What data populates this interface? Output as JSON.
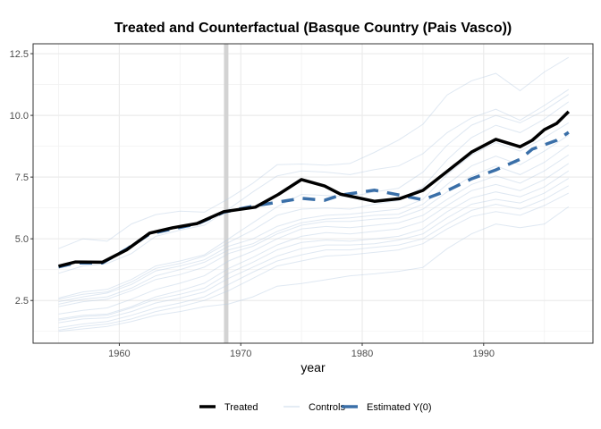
{
  "chart_data": {
    "type": "line",
    "title": "Treated and Counterfactual (Basque Country (Pais Vasco))",
    "xlabel": "year",
    "ylabel": "",
    "xlim": [
      1952.9,
      1999.0
    ],
    "ylim": [
      0.77,
      12.9
    ],
    "x_ticks": [
      1960,
      1970,
      1980,
      1990
    ],
    "x_tick_labels": [
      "1960",
      "1970",
      "1980",
      "1990"
    ],
    "x_minor_gridlines": [
      1955,
      1965,
      1975,
      1985,
      1995
    ],
    "y_ticks": [
      2.5,
      5.0,
      7.5,
      10.0,
      12.5
    ],
    "y_tick_labels": [
      "2.5",
      "5.0",
      "7.5",
      "10.0",
      "12.5"
    ],
    "y_minor_gridlines": [
      1.25,
      3.75,
      6.25,
      8.75,
      11.25
    ],
    "grid": true,
    "treatment_year": 1968.8,
    "legend": {
      "position": "bottom",
      "entries": [
        {
          "label": "Treated",
          "color": "#000000",
          "style": "solid"
        },
        {
          "label": "Controls",
          "color": "#dce6f1",
          "style": "solid"
        },
        {
          "label": "Estimated Y(0)",
          "color": "#3a6fa8",
          "style": "dashed"
        }
      ]
    },
    "colors": {
      "treated": "#000000",
      "controls": "#b9cde3",
      "estimated": "#3a6fa8",
      "treatment_band": "#d3d3d3",
      "grid": "#ebebeb",
      "panel_border": "#333333"
    },
    "series": [
      {
        "name": "Treated",
        "x": [
          1955,
          1956.4,
          1958.6,
          1960.6,
          1962.5,
          1964.4,
          1966.4,
          1968.6,
          1971.2,
          1973.1,
          1975,
          1976.9,
          1978.2,
          1981,
          1983.1,
          1985,
          1987,
          1989,
          1991,
          1993,
          1994,
          1995,
          1996,
          1997
        ],
        "values": [
          3.89,
          4.06,
          4.05,
          4.55,
          5.23,
          5.45,
          5.62,
          6.1,
          6.28,
          6.8,
          7.4,
          7.14,
          6.81,
          6.52,
          6.63,
          6.96,
          7.73,
          8.51,
          9.03,
          8.73,
          8.99,
          9.42,
          9.67,
          10.15
        ]
      },
      {
        "name": "Estimated Y(0)",
        "x": [
          1955,
          1956.4,
          1958.6,
          1960.6,
          1962.5,
          1964.4,
          1966.4,
          1968.6,
          1971.2,
          1975,
          1976.9,
          1978.2,
          1981,
          1983.1,
          1985,
          1987,
          1989,
          1991,
          1993,
          1994,
          1995,
          1996,
          1997
        ],
        "values": [
          3.86,
          4.02,
          4.02,
          4.58,
          5.2,
          5.4,
          5.6,
          6.08,
          6.34,
          6.64,
          6.56,
          6.77,
          6.97,
          6.77,
          6.58,
          6.95,
          7.43,
          7.79,
          8.22,
          8.63,
          8.81,
          8.99,
          9.31
        ]
      },
      {
        "name": "Controls",
        "x": [
          1955,
          1957,
          1959,
          1961,
          1963,
          1965,
          1967,
          1969,
          1971,
          1973,
          1975,
          1977,
          1979,
          1981,
          1983,
          1985,
          1987,
          1989,
          1991,
          1993,
          1995,
          1997
        ],
        "lines": [
          [
            4.6,
            5.0,
            4.9,
            5.6,
            5.98,
            6.12,
            6.08,
            6.63,
            7.25,
            8.0,
            8.03,
            7.98,
            8.05,
            8.5,
            9.0,
            9.64,
            10.83,
            11.4,
            11.7,
            11.0,
            11.76,
            12.35
          ],
          [
            3.6,
            3.9,
            4.0,
            4.4,
            5.1,
            5.35,
            5.55,
            6.2,
            6.9,
            7.55,
            7.75,
            7.7,
            7.6,
            7.8,
            7.95,
            8.45,
            9.3,
            9.9,
            10.25,
            9.8,
            10.4,
            11.05
          ],
          [
            2.6,
            2.85,
            2.95,
            3.35,
            3.9,
            4.1,
            4.35,
            5.0,
            5.65,
            6.3,
            6.8,
            6.75,
            6.7,
            6.9,
            7.05,
            7.7,
            8.8,
            9.6,
            10.0,
            9.7,
            10.2,
            10.85
          ],
          [
            2.55,
            2.75,
            2.85,
            3.25,
            3.8,
            4.0,
            4.3,
            4.85,
            5.35,
            5.95,
            6.2,
            6.25,
            6.2,
            6.4,
            6.55,
            7.1,
            8.2,
            9.1,
            9.6,
            9.3,
            9.85,
            10.55
          ],
          [
            2.45,
            2.65,
            2.8,
            3.15,
            3.7,
            3.9,
            4.15,
            4.7,
            5.0,
            5.5,
            5.8,
            5.95,
            6.0,
            6.1,
            6.2,
            6.6,
            7.6,
            8.4,
            8.9,
            8.55,
            9.1,
            9.7
          ],
          [
            2.35,
            2.55,
            2.65,
            3.0,
            3.5,
            3.75,
            4.05,
            4.55,
            4.8,
            5.3,
            5.65,
            5.8,
            5.85,
            5.95,
            6.0,
            6.4,
            7.2,
            7.95,
            8.35,
            8.0,
            8.55,
            9.2
          ],
          [
            2.25,
            2.45,
            2.55,
            2.9,
            3.35,
            3.55,
            3.85,
            4.4,
            4.7,
            5.2,
            5.55,
            5.7,
            5.7,
            5.8,
            5.85,
            6.2,
            6.9,
            7.55,
            7.95,
            7.6,
            8.1,
            8.8
          ],
          [
            1.95,
            2.1,
            2.2,
            2.55,
            2.95,
            3.2,
            3.5,
            4.1,
            4.5,
            5.0,
            5.4,
            5.5,
            5.45,
            5.55,
            5.65,
            5.95,
            6.6,
            7.2,
            7.55,
            7.25,
            7.75,
            8.4
          ],
          [
            1.75,
            1.9,
            1.95,
            2.25,
            2.65,
            2.9,
            3.2,
            3.8,
            4.25,
            4.75,
            5.1,
            5.25,
            5.2,
            5.3,
            5.4,
            5.7,
            6.35,
            6.95,
            7.2,
            6.95,
            7.4,
            8.05
          ],
          [
            1.7,
            1.85,
            1.9,
            2.2,
            2.55,
            2.75,
            3.0,
            3.6,
            4.05,
            4.55,
            4.85,
            4.95,
            4.9,
            5.0,
            5.1,
            5.4,
            6.1,
            6.65,
            6.9,
            6.7,
            7.1,
            7.75
          ],
          [
            1.6,
            1.75,
            1.8,
            2.05,
            2.4,
            2.6,
            2.85,
            3.4,
            3.85,
            4.3,
            4.6,
            4.75,
            4.75,
            4.8,
            4.95,
            5.2,
            5.85,
            6.4,
            6.6,
            6.45,
            6.85,
            7.45
          ],
          [
            1.4,
            1.55,
            1.65,
            1.9,
            2.2,
            2.4,
            2.65,
            3.15,
            3.65,
            4.1,
            4.35,
            4.55,
            4.55,
            4.65,
            4.75,
            5.0,
            5.6,
            6.15,
            6.4,
            6.2,
            6.6,
            7.15
          ],
          [
            1.3,
            1.45,
            1.55,
            1.75,
            2.05,
            2.25,
            2.5,
            2.9,
            3.4,
            3.9,
            4.1,
            4.3,
            4.35,
            4.45,
            4.55,
            4.8,
            5.4,
            5.9,
            6.1,
            5.95,
            6.35,
            6.85
          ],
          [
            1.25,
            1.35,
            1.45,
            1.65,
            1.9,
            2.05,
            2.25,
            2.36,
            2.65,
            3.08,
            3.19,
            3.34,
            3.5,
            3.58,
            3.68,
            3.84,
            4.6,
            5.2,
            5.6,
            5.45,
            5.6,
            6.3
          ]
        ]
      }
    ]
  }
}
